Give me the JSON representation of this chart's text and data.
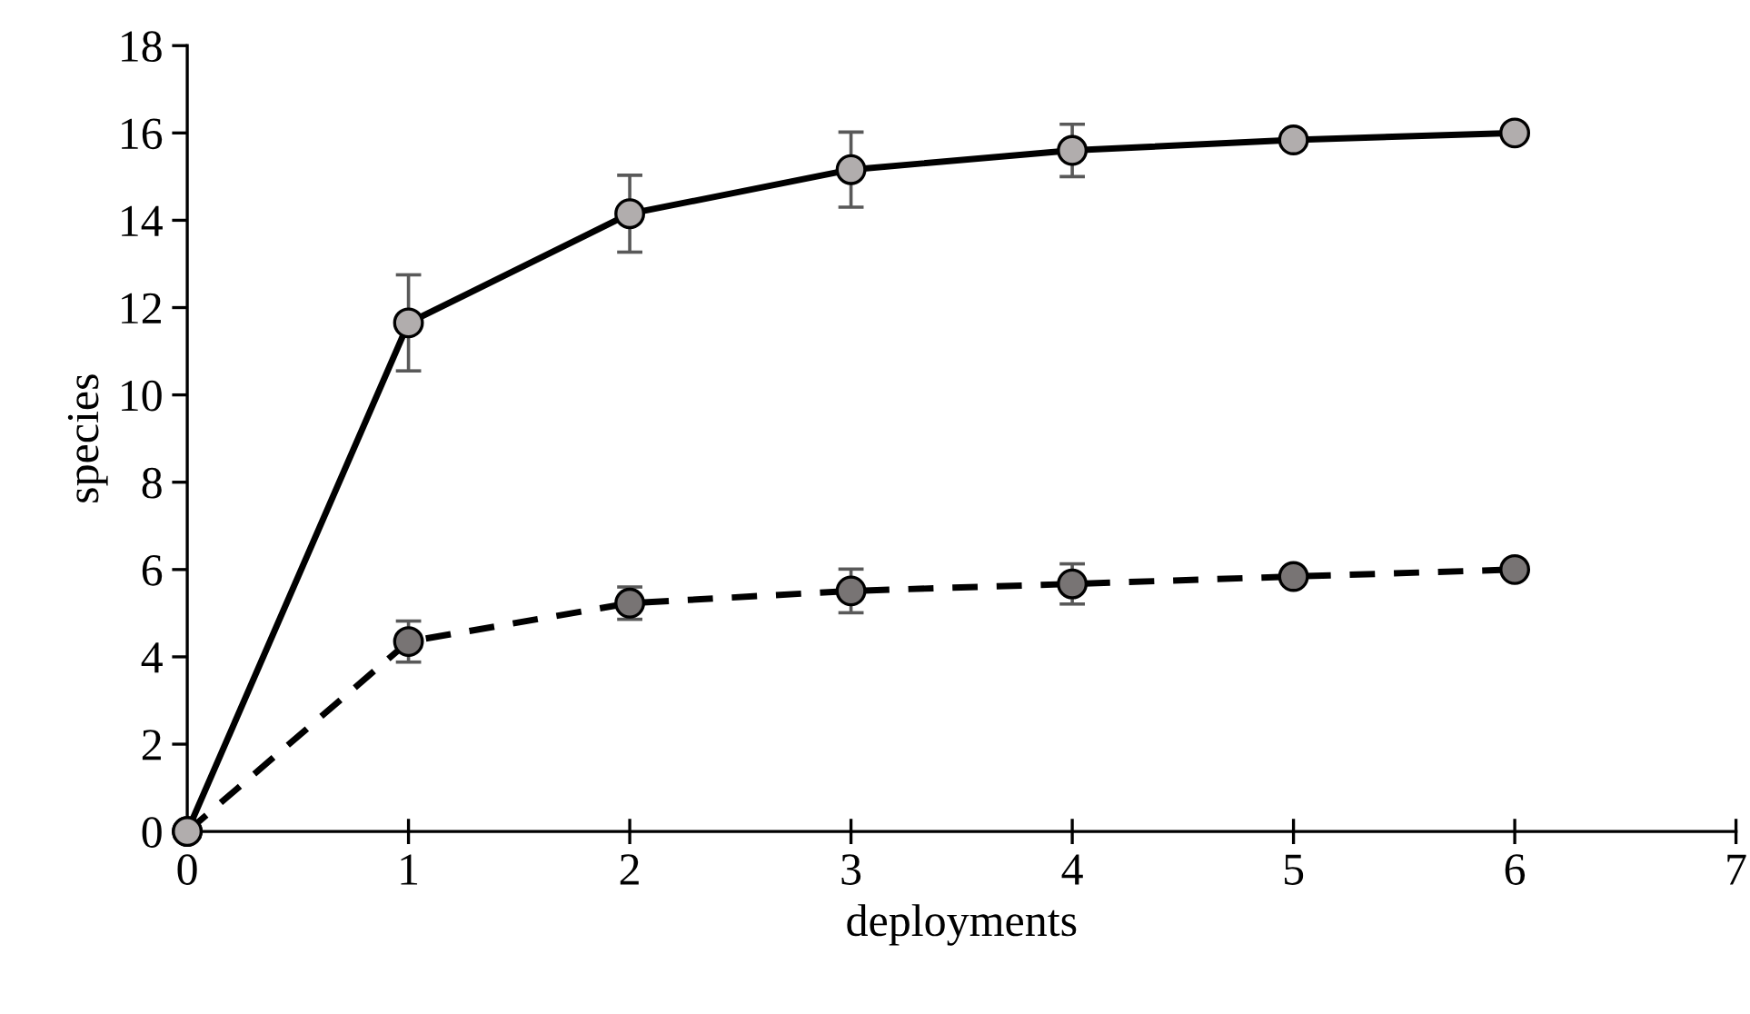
{
  "chart_data": {
    "type": "line",
    "xlabel": "deployments",
    "ylabel": "species",
    "x": [
      0,
      1,
      2,
      3,
      4,
      5,
      6
    ],
    "series": [
      {
        "color": "#b1adad",
        "values": [
          0,
          11.65,
          14.15,
          15.16,
          15.6,
          15.84,
          16.0
        ],
        "errors": [
          null,
          1.1,
          0.88,
          0.86,
          0.6,
          null,
          null
        ],
        "line_style": "solid"
      },
      {
        "color": "#787474",
        "values": [
          0,
          4.35,
          5.23,
          5.51,
          5.67,
          5.84,
          6.0
        ],
        "errors": [
          null,
          0.47,
          0.37,
          0.5,
          0.46,
          null,
          null
        ],
        "line_style": "dashed"
      }
    ],
    "xlim": [
      0,
      7
    ],
    "xticks": [
      0,
      1,
      2,
      3,
      4,
      5,
      6,
      7
    ],
    "ylim": [
      0,
      18
    ],
    "yticks": [
      0,
      2,
      4,
      6,
      8,
      10,
      12,
      14,
      16,
      18
    ],
    "marker": "circle",
    "grid": false,
    "legend": false
  }
}
